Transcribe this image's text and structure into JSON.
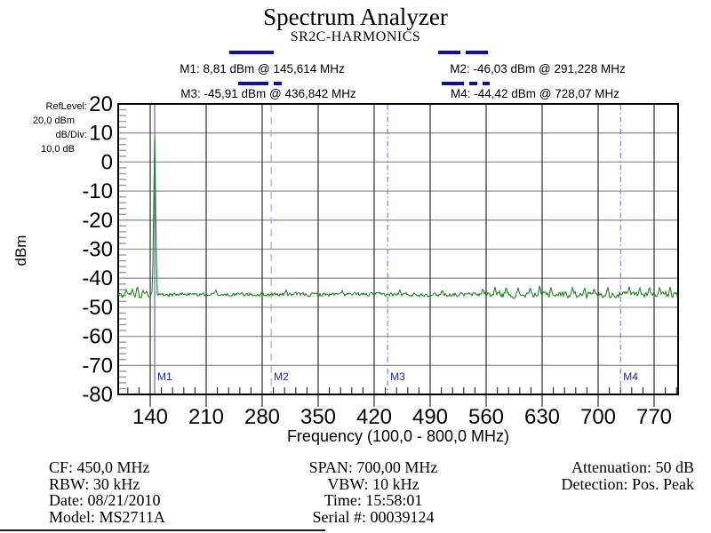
{
  "header": {
    "title": "Spectrum Analyzer",
    "subtitle": "SR2C-HARMONICS"
  },
  "marker_readouts": [
    {
      "id": "M1",
      "text": "M1: 8,81 dBm @ 145,614 MHz",
      "legend_segments": [
        50
      ]
    },
    {
      "id": "M2",
      "text": "M2: -46,03 dBm @ 291,228 MHz",
      "legend_segments": [
        25,
        25
      ]
    },
    {
      "id": "M3",
      "text": "M3: -45,91 dBm @ 436,842 MHz",
      "legend_segments": [
        34,
        9
      ]
    },
    {
      "id": "M4",
      "text": "M4: -44,42 dBm @ 728,07 MHz",
      "legend_segments": [
        25,
        9,
        8
      ]
    }
  ],
  "left_panel": {
    "ref_level_label": "RefLevel:",
    "ref_level_value": "20,0 dBm",
    "db_div_label": "dB/Div:",
    "db_div_value": "10,0 dB"
  },
  "chart_data": {
    "type": "line",
    "title": "Spectrum Analyzer",
    "subtitle": "SR2C-HARMONICS",
    "xlabel": "Frequency (100,0 - 800,0 MHz)",
    "ylabel": "dBm",
    "x_range": [
      100,
      800
    ],
    "y_range": [
      -80,
      20
    ],
    "x_ticks": [
      140,
      210,
      280,
      350,
      420,
      490,
      560,
      630,
      700,
      770
    ],
    "y_ticks": [
      20,
      10,
      0,
      -10,
      -20,
      -30,
      -40,
      -50,
      -60,
      -70,
      -80
    ],
    "x_minor_step_mhz": 14,
    "y_minor_step_db": 2,
    "grid": true,
    "noise_floor_dbm": -45.6,
    "markers": [
      {
        "label": "M1",
        "freq_mhz": 145.614,
        "level_dbm": 8.81,
        "line_style": "solid"
      },
      {
        "label": "M2",
        "freq_mhz": 291.228,
        "level_dbm": -46.03,
        "line_style": "dash"
      },
      {
        "label": "M3",
        "freq_mhz": 436.842,
        "level_dbm": -45.91,
        "line_style": "dashdot"
      },
      {
        "label": "M4",
        "freq_mhz": 728.07,
        "level_dbm": -44.42,
        "line_style": "dashdot"
      }
    ],
    "peaks": [
      {
        "f": 110.0,
        "l": -43.9
      },
      {
        "f": 117.6,
        "l": -43.6
      },
      {
        "f": 124.0,
        "l": -42.4
      },
      {
        "f": 131.0,
        "l": -44.1
      },
      {
        "f": 145.614,
        "l": 8.81,
        "w": 2.8
      },
      {
        "f": 222.0,
        "l": -43.9
      },
      {
        "f": 310.0,
        "l": -44.1
      },
      {
        "f": 380.0,
        "l": -44.2
      },
      {
        "f": 452.0,
        "l": -43.9
      },
      {
        "f": 505.0,
        "l": -44.0
      },
      {
        "f": 556.0,
        "l": -43.3
      },
      {
        "f": 571.0,
        "l": -42.9
      },
      {
        "f": 585.0,
        "l": -42.7
      },
      {
        "f": 600.0,
        "l": -43.2
      },
      {
        "f": 615.0,
        "l": -42.9
      },
      {
        "f": 627.0,
        "l": -42.3
      },
      {
        "f": 641.0,
        "l": -43.0
      },
      {
        "f": 668.0,
        "l": -42.9
      },
      {
        "f": 683.0,
        "l": -43.1
      },
      {
        "f": 695.0,
        "l": -43.3
      },
      {
        "f": 712.0,
        "l": -43.0
      },
      {
        "f": 739.0,
        "l": -42.7
      },
      {
        "f": 752.0,
        "l": -43.1
      },
      {
        "f": 764.0,
        "l": -42.7
      },
      {
        "f": 777.0,
        "l": -42.8
      },
      {
        "f": 790.0,
        "l": -43.0
      }
    ]
  },
  "colors": {
    "trace": "#1e8420",
    "marker_navy": "#10109e",
    "marker_label": "#2121bd",
    "marker_line_solid": "#6565b5",
    "marker_line_dash": "#a8a8d4",
    "marker_line_dashdot": "#8585c5",
    "grid_h": "#949494",
    "grid_v": "#3d3d3d",
    "frame": "#000000"
  },
  "footer": {
    "left_lines": [
      "CF: 450,0 MHz",
      "RBW: 30 kHz",
      "Date: 08/21/2010",
      "Model: MS2711A"
    ],
    "center_lines": [
      "SPAN: 700,00 MHz",
      "VBW: 10 kHz",
      "Time: 15:58:01",
      "Serial #: 00039124"
    ],
    "right_lines": [
      "Attenuation: 50 dB",
      "Detection: Pos. Peak"
    ]
  }
}
